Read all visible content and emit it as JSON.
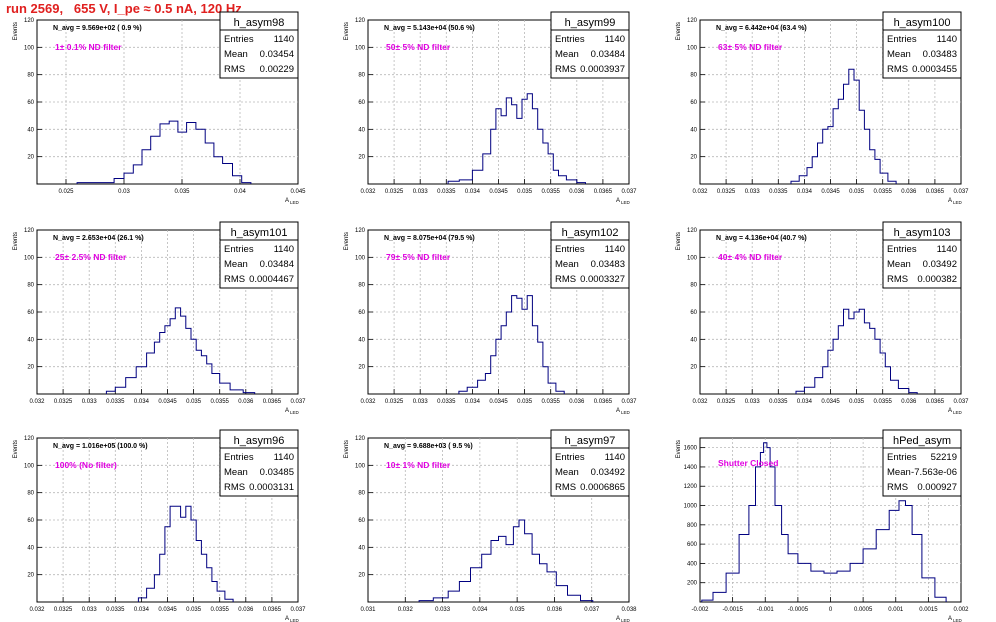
{
  "page": {
    "title": "run 2569,   655 V, I_pe ≈ 0.5 nA, 120 Hz",
    "colors": {
      "title": "#e0201f",
      "annotation": "#e000e0",
      "histogram": "#000080",
      "grid": "#b8b8b8"
    },
    "ylabel": "Events",
    "xlabel": "A",
    "xlabel_sub": "LED"
  },
  "chart_data": [
    {
      "type": "bar",
      "name": "h_asym98",
      "stats": {
        "entries": "1140",
        "mean": "0.03454",
        "rms": "0.00229"
      },
      "navg": "N_avg = 9.569e+02 ( 0.9 %)",
      "filter": "1± 0.1% ND filter",
      "xlim": [
        0.0225,
        0.045
      ],
      "ylim": [
        0,
        120
      ],
      "xticks": [
        "0.025",
        "0.03",
        "0.035",
        "0.04",
        "0.045"
      ],
      "yticks": [
        "20",
        "40",
        "60",
        "80",
        "100",
        "120"
      ],
      "x": [
        0.0264,
        0.0287,
        0.0296,
        0.0304,
        0.0312,
        0.0319,
        0.0327,
        0.0335,
        0.0343,
        0.035,
        0.0358,
        0.0366,
        0.0374,
        0.0381,
        0.0389,
        0.0398,
        0.0405
      ],
      "y": [
        1,
        1,
        4,
        8,
        14,
        25,
        35,
        44,
        46,
        38,
        45,
        40,
        30,
        20,
        15,
        6,
        1
      ]
    },
    {
      "type": "bar",
      "name": "h_asym99",
      "stats": {
        "entries": "1140",
        "mean": "0.03484",
        "rms": "0.0003937"
      },
      "navg": "N_avg = 5.143e+04 (50.6 %)",
      "filter": "50± 5% ND filter",
      "xlim": [
        0.032,
        0.037
      ],
      "ylim": [
        0,
        120
      ],
      "xticks": [
        "0.032",
        "0.0325",
        "0.033",
        "0.0335",
        "0.034",
        "0.0345",
        "0.035",
        "0.0355",
        "0.036",
        "0.0365",
        "0.037"
      ],
      "yticks": [
        "20",
        "40",
        "60",
        "80",
        "100",
        "120"
      ],
      "x": [
        0.0336,
        0.0339,
        0.0341,
        0.0343,
        0.0344,
        0.0345,
        0.0346,
        0.0347,
        0.0348,
        0.0349,
        0.035,
        0.0351,
        0.0352,
        0.0353,
        0.0354,
        0.0355,
        0.0356,
        0.0357,
        0.0359,
        0.0361
      ],
      "y": [
        2,
        3,
        10,
        22,
        40,
        55,
        50,
        63,
        58,
        48,
        62,
        66,
        55,
        40,
        30,
        22,
        10,
        6,
        3,
        1
      ]
    },
    {
      "type": "bar",
      "name": "h_asym100",
      "stats": {
        "entries": "1140",
        "mean": "0.03483",
        "rms": "0.0003455"
      },
      "navg": "N_avg = 6.442e+04 (63.4 %)",
      "filter": "63± 5% ND filter",
      "xlim": [
        0.032,
        0.037
      ],
      "ylim": [
        0,
        120
      ],
      "xticks": [
        "0.032",
        "0.0325",
        "0.033",
        "0.0335",
        "0.034",
        "0.0345",
        "0.035",
        "0.0355",
        "0.036",
        "0.0365",
        "0.037"
      ],
      "yticks": [
        "20",
        "40",
        "60",
        "80",
        "100",
        "120"
      ],
      "x": [
        0.0338,
        0.034,
        0.0341,
        0.0342,
        0.0343,
        0.0344,
        0.0345,
        0.0346,
        0.0347,
        0.0348,
        0.0349,
        0.035,
        0.0351,
        0.0352,
        0.0353,
        0.0354,
        0.0355,
        0.0357
      ],
      "y": [
        2,
        6,
        12,
        20,
        30,
        40,
        42,
        55,
        62,
        73,
        84,
        76,
        54,
        40,
        25,
        18,
        8,
        2
      ]
    },
    {
      "type": "bar",
      "name": "h_asym101",
      "stats": {
        "entries": "1140",
        "mean": "0.03484",
        "rms": "0.0004467"
      },
      "navg": "N_avg = 2.653e+04 (26.1 %)",
      "filter": "25± 2.5% ND filter",
      "xlim": [
        0.032,
        0.037
      ],
      "ylim": [
        0,
        120
      ],
      "xticks": [
        "0.032",
        "0.0325",
        "0.033",
        "0.0335",
        "0.034",
        "0.0345",
        "0.035",
        "0.0355",
        "0.036",
        "0.0365",
        "0.037"
      ],
      "yticks": [
        "20",
        "40",
        "60",
        "80",
        "100",
        "120"
      ],
      "x": [
        0.0334,
        0.0336,
        0.0338,
        0.034,
        0.0342,
        0.0343,
        0.0344,
        0.0345,
        0.0346,
        0.0347,
        0.0348,
        0.0349,
        0.035,
        0.0351,
        0.0352,
        0.0353,
        0.0354,
        0.0356,
        0.0358,
        0.0361
      ],
      "y": [
        2,
        5,
        12,
        20,
        30,
        38,
        45,
        50,
        55,
        63,
        57,
        48,
        40,
        32,
        28,
        22,
        15,
        8,
        3,
        1
      ]
    },
    {
      "type": "bar",
      "name": "h_asym102",
      "stats": {
        "entries": "1140",
        "mean": "0.03483",
        "rms": "0.0003327"
      },
      "navg": "N_avg = 8.075e+04 (79.5 %)",
      "filter": "79± 5% ND filter",
      "xlim": [
        0.032,
        0.037
      ],
      "ylim": [
        0,
        120
      ],
      "xticks": [
        "0.032",
        "0.0325",
        "0.033",
        "0.0335",
        "0.034",
        "0.0345",
        "0.035",
        "0.0355",
        "0.036",
        "0.0365",
        "0.037"
      ],
      "yticks": [
        "20",
        "40",
        "60",
        "80",
        "100",
        "120"
      ],
      "x": [
        0.0338,
        0.034,
        0.0342,
        0.0343,
        0.0344,
        0.0345,
        0.0346,
        0.0347,
        0.0348,
        0.0349,
        0.035,
        0.0351,
        0.0352,
        0.0353,
        0.0354,
        0.0355,
        0.0357
      ],
      "y": [
        2,
        5,
        10,
        15,
        28,
        40,
        50,
        60,
        72,
        70,
        62,
        72,
        50,
        38,
        20,
        8,
        2
      ]
    },
    {
      "type": "bar",
      "name": "h_asym103",
      "stats": {
        "entries": "1140",
        "mean": "0.03492",
        "rms": "0.000382"
      },
      "navg": "N_avg = 4.136e+04 (40.7 %)",
      "filter": "40± 4% ND filter",
      "xlim": [
        0.032,
        0.037
      ],
      "ylim": [
        0,
        120
      ],
      "xticks": [
        "0.032",
        "0.0325",
        "0.033",
        "0.0335",
        "0.034",
        "0.0345",
        "0.035",
        "0.0355",
        "0.036",
        "0.0365",
        "0.037"
      ],
      "yticks": [
        "20",
        "40",
        "60",
        "80",
        "100",
        "120"
      ],
      "x": [
        0.0339,
        0.0341,
        0.0343,
        0.0344,
        0.0345,
        0.0346,
        0.0347,
        0.0348,
        0.0349,
        0.035,
        0.0351,
        0.0352,
        0.0353,
        0.0354,
        0.0355,
        0.0356,
        0.0357,
        0.0359,
        0.0361
      ],
      "y": [
        2,
        5,
        12,
        20,
        32,
        40,
        50,
        62,
        55,
        60,
        62,
        52,
        48,
        40,
        30,
        20,
        10,
        4,
        1
      ]
    },
    {
      "type": "bar",
      "name": "h_asym96",
      "stats": {
        "entries": "1140",
        "mean": "0.03485",
        "rms": "0.0003131"
      },
      "navg": "N_avg = 1.016e+05 (100.0 %)",
      "filter": "100% (No filter)",
      "xlim": [
        0.032,
        0.037
      ],
      "ylim": [
        0,
        120
      ],
      "xticks": [
        "0.032",
        "0.0325",
        "0.033",
        "0.0335",
        "0.034",
        "0.0345",
        "0.035",
        "0.0355",
        "0.036",
        "0.0365",
        "0.037"
      ],
      "yticks": [
        "20",
        "40",
        "60",
        "80",
        "100",
        "120"
      ],
      "x": [
        0.034,
        0.0342,
        0.0343,
        0.0344,
        0.0345,
        0.0346,
        0.0347,
        0.0348,
        0.0349,
        0.035,
        0.0351,
        0.0352,
        0.0353,
        0.0354,
        0.0355,
        0.0357
      ],
      "y": [
        3,
        10,
        20,
        35,
        55,
        70,
        70,
        62,
        70,
        60,
        45,
        35,
        25,
        15,
        8,
        2
      ]
    },
    {
      "type": "bar",
      "name": "h_asym97",
      "stats": {
        "entries": "1140",
        "mean": "0.03492",
        "rms": "0.0006865"
      },
      "navg": "N_avg = 9.688e+03 ( 9.5 %)",
      "filter": "10± 1% ND filter",
      "xlim": [
        0.031,
        0.038
      ],
      "ylim": [
        0,
        120
      ],
      "xticks": [
        "0.031",
        "0.032",
        "0.033",
        "0.034",
        "0.035",
        "0.036",
        "0.037",
        "0.038"
      ],
      "yticks": [
        "20",
        "40",
        "60",
        "80",
        "100",
        "120"
      ],
      "x": [
        0.0325,
        0.033,
        0.0333,
        0.0336,
        0.0339,
        0.0342,
        0.0344,
        0.0346,
        0.0348,
        0.035,
        0.0351,
        0.0353,
        0.0355,
        0.0357,
        0.0359,
        0.0362,
        0.0365,
        0.0369
      ],
      "y": [
        1,
        3,
        8,
        15,
        25,
        35,
        45,
        48,
        42,
        55,
        60,
        50,
        35,
        28,
        22,
        12,
        5,
        1
      ]
    },
    {
      "type": "bar",
      "name": "hPed_asym",
      "stats": {
        "entries": "52219",
        "mean": "-7.563e-06",
        "rms": "0.000927"
      },
      "navg": "",
      "filter": "Shutter Closed",
      "xlim": [
        -0.002,
        0.002
      ],
      "ylim": [
        0,
        1700
      ],
      "xticks": [
        "-0.002",
        "-0.0015",
        "-0.001",
        "-0.0005",
        "0",
        "0.0005",
        "0.001",
        "0.0015",
        "0.002"
      ],
      "yticks": [
        "200",
        "400",
        "600",
        "800",
        "1000",
        "1200",
        "1400",
        "1600"
      ],
      "x": [
        -0.0019,
        -0.0017,
        -0.0015,
        -0.0013,
        -0.0012,
        -0.0011,
        -0.00105,
        -0.001,
        -0.00095,
        -0.0009,
        -0.0008,
        -0.0007,
        -0.0006,
        -0.0004,
        -0.0002,
        0,
        0.0002,
        0.0004,
        0.0006,
        0.0008,
        0.001,
        0.0011,
        0.0012,
        0.0013,
        0.0015,
        0.0017
      ],
      "y": [
        20,
        100,
        300,
        700,
        1000,
        1400,
        1550,
        1650,
        1600,
        1400,
        1000,
        700,
        500,
        400,
        320,
        300,
        320,
        400,
        550,
        750,
        950,
        1050,
        1000,
        700,
        250,
        50
      ]
    }
  ]
}
